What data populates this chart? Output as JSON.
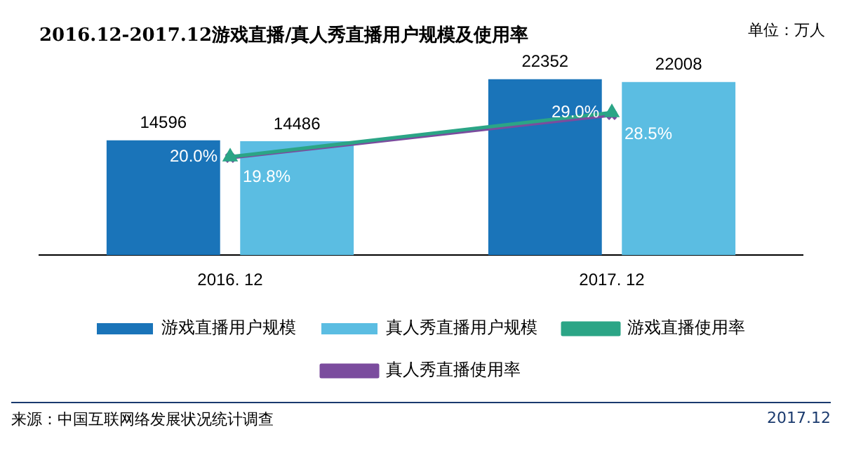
{
  "chart_data": {
    "type": "bar",
    "title": "2016.12-2017.12游戏直播/真人秀直播用户规模及使用率",
    "categories": [
      "2016. 12",
      "2017. 12"
    ],
    "series": [
      {
        "name": "游戏直播用户规模",
        "color": "#1a74b9",
        "values": [
          14596,
          22352
        ]
      },
      {
        "name": "真人秀直播用户规模",
        "color": "#5bbde2",
        "values": [
          14486,
          22008
        ]
      },
      {
        "name": "游戏直播使用率",
        "type": "line",
        "axis": "y2",
        "marker": "triangle",
        "color": "#2ba586",
        "values": [
          20.0,
          29.0
        ],
        "value_labels": [
          "20.0%",
          "29.0%"
        ]
      },
      {
        "name": "真人秀直播使用率",
        "type": "line",
        "axis": "y2",
        "marker": "cross",
        "color": "#7b4c9e",
        "values": [
          19.8,
          28.5
        ],
        "value_labels": [
          "19.8%",
          "28.5%"
        ]
      }
    ],
    "data_labels": true,
    "legend": "bottom",
    "annotations": [
      "单位：万人",
      "来源：中国互联网络发展状况统计调查",
      "2017.12"
    ]
  }
}
